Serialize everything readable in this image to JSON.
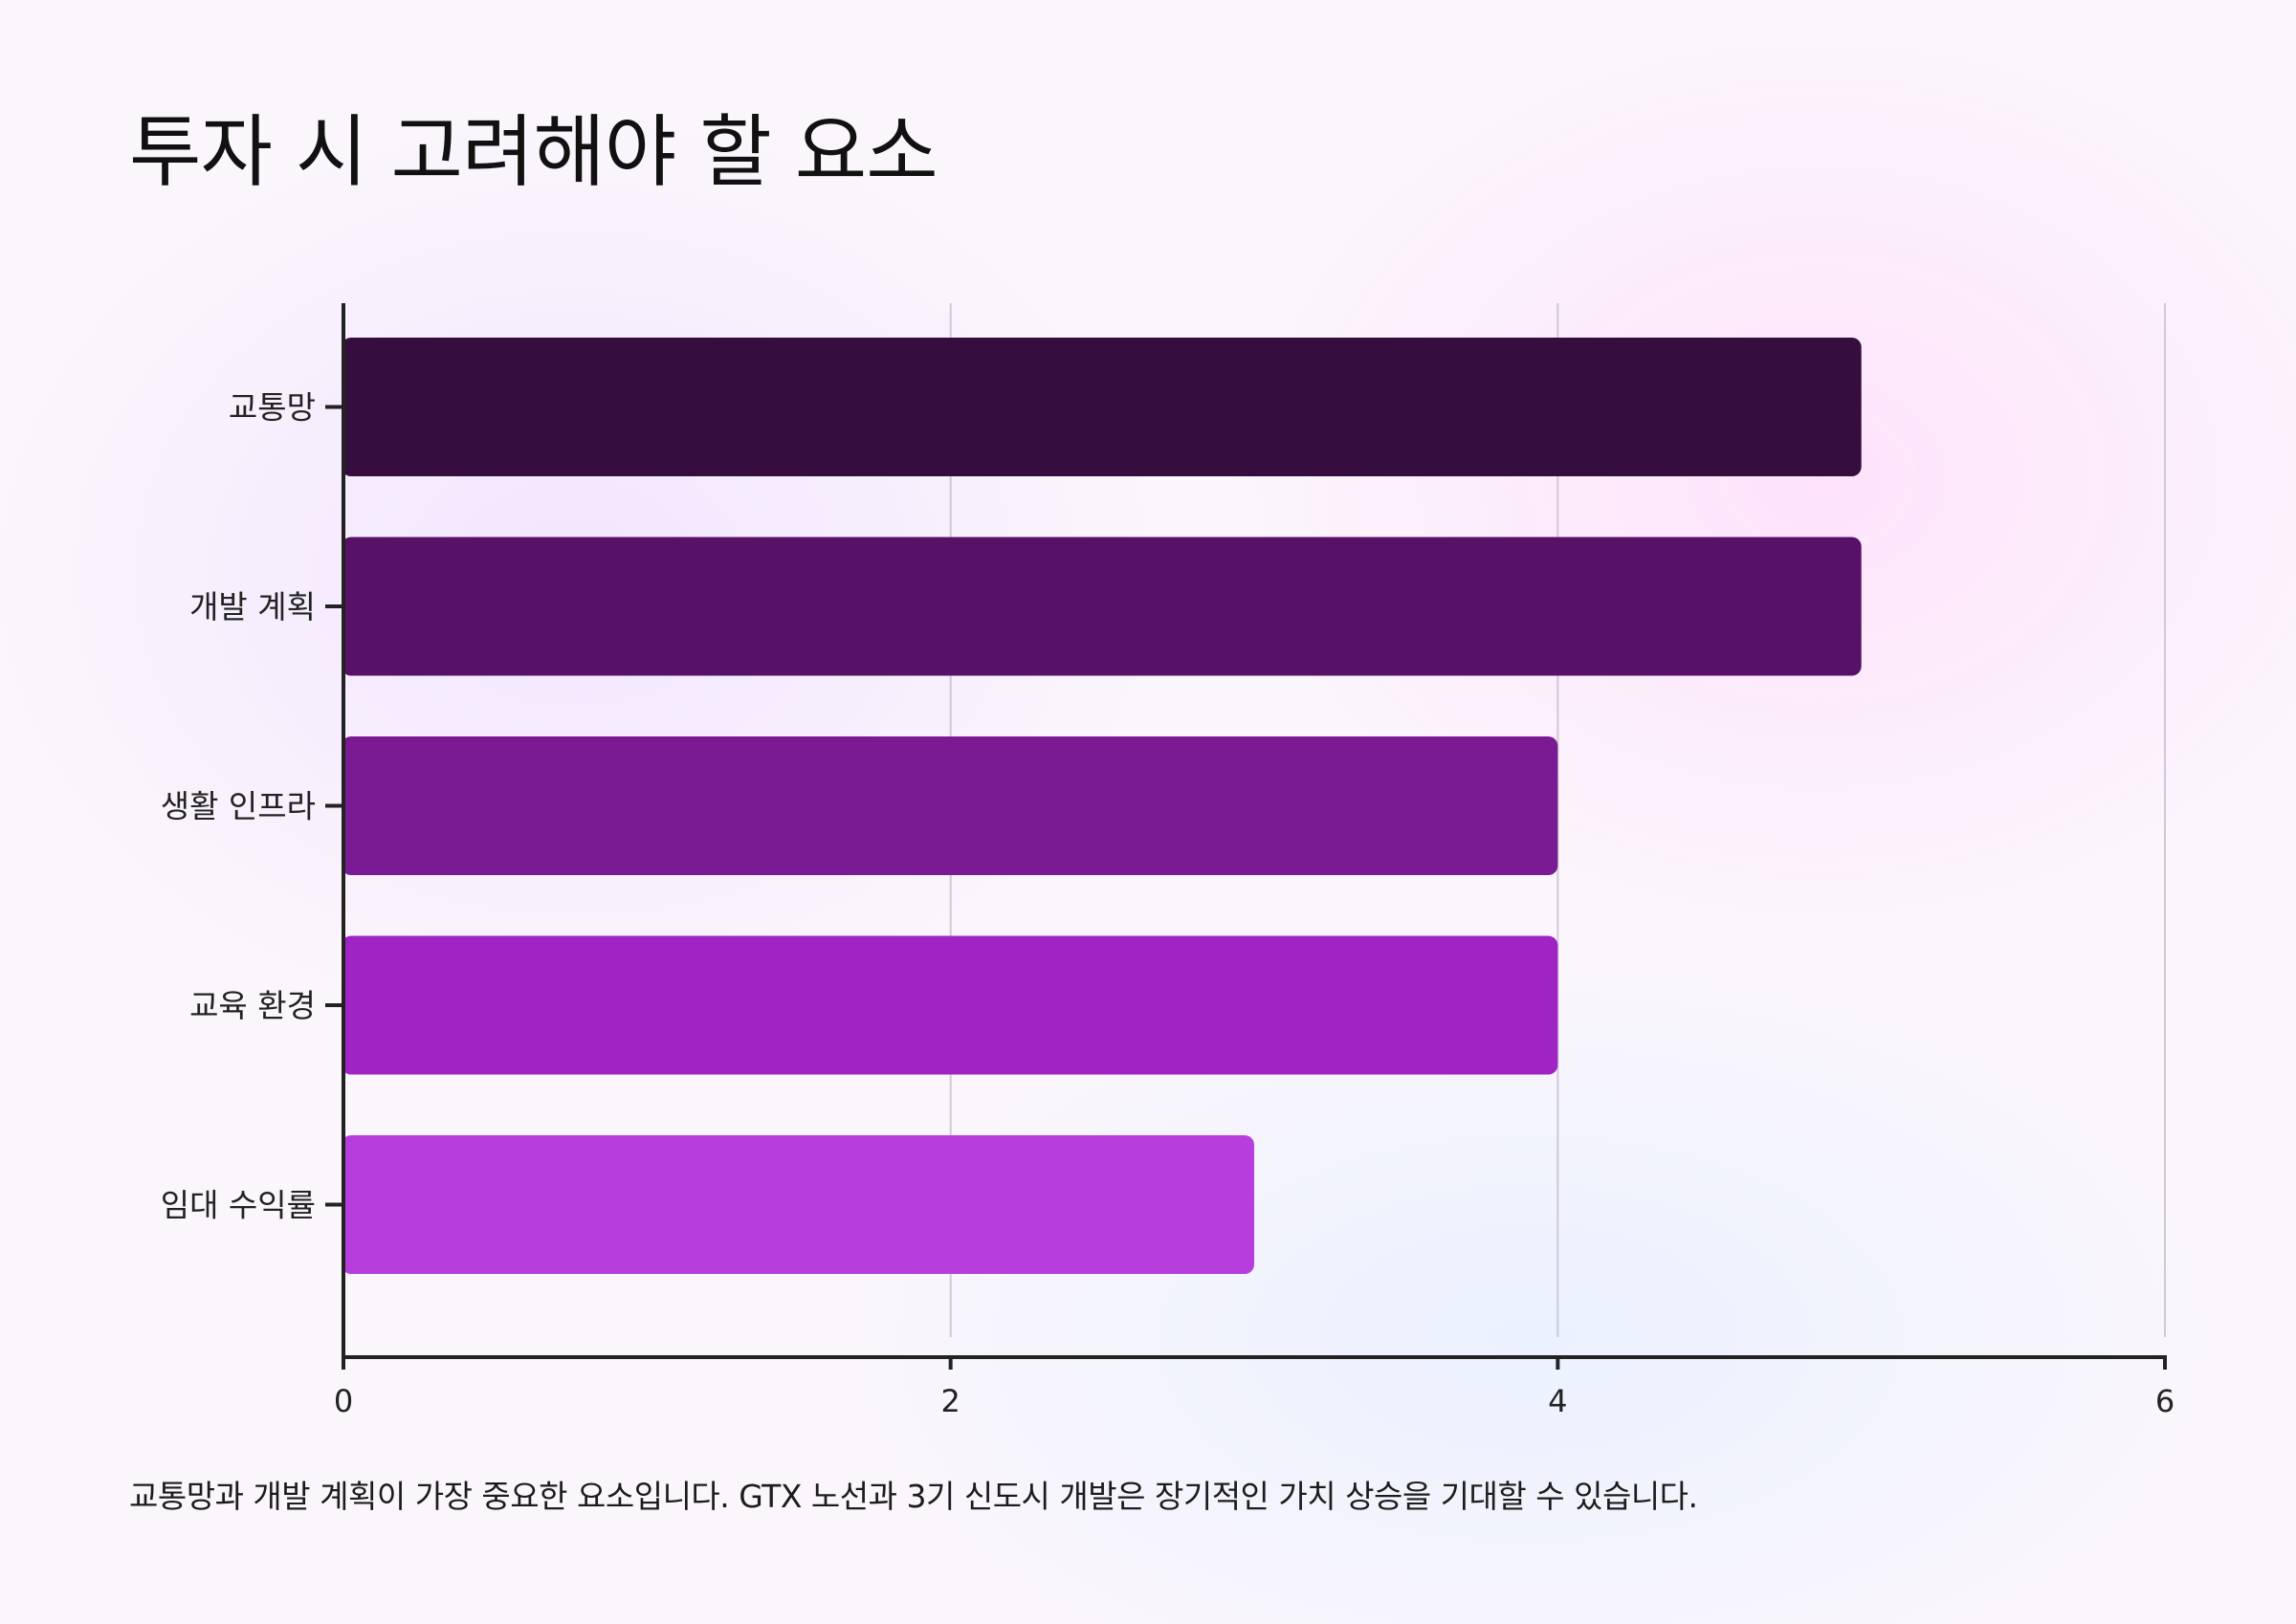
{
  "title": "투자 시 고려해야 할 요소",
  "footnote": "교통망과 개발 계획이 가장 중요한 요소입니다. GTX 노선과 3기 신도시 개발은 장기적인 가치 상승을 기대할 수 있습니다.",
  "chart_data": {
    "type": "bar",
    "orientation": "horizontal",
    "title": "",
    "xlabel": "",
    "ylabel": "",
    "xlim": [
      0,
      6
    ],
    "x_ticks": [
      0,
      2,
      4,
      6
    ],
    "grid": true,
    "categories": [
      "교통망",
      "개발 계획",
      "생활 인프라",
      "교육 환경",
      "임대 수익률"
    ],
    "values": [
      5,
      5,
      4,
      4,
      3
    ],
    "colors": [
      "#350d3f",
      "#571267",
      "#7a1b94",
      "#a023c4",
      "#b73ddd"
    ]
  }
}
